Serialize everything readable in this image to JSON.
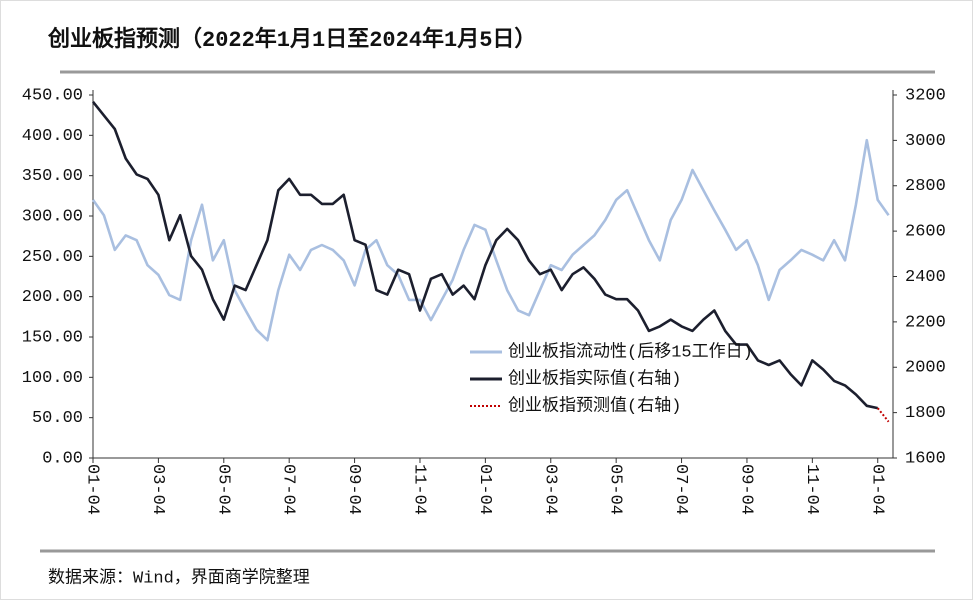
{
  "chart_data": {
    "type": "line",
    "title": "创业板指预测（2022年1月1日至2024年1月5日）",
    "source": "数据来源：Wind，界面商学院整理",
    "categories": [
      "01-04",
      null,
      null,
      null,
      null,
      null,
      "03-04",
      null,
      null,
      null,
      null,
      null,
      "05-04",
      null,
      null,
      null,
      null,
      null,
      "07-04",
      null,
      null,
      null,
      null,
      null,
      "09-04",
      null,
      null,
      null,
      null,
      null,
      "11-04",
      null,
      null,
      null,
      null,
      null,
      "01-04",
      null,
      null,
      null,
      null,
      null,
      "03-04",
      null,
      null,
      null,
      null,
      null,
      "05-04",
      null,
      null,
      null,
      null,
      null,
      "07-04",
      null,
      null,
      null,
      null,
      null,
      "09-04",
      null,
      null,
      null,
      null,
      null,
      "11-04",
      null,
      null,
      null,
      null,
      null,
      "01-04",
      null
    ],
    "series": [
      {
        "name": "创业板指流动性(后移15工作日)",
        "color": "#a9bfe0",
        "axis": "y",
        "style": "solid",
        "values": [
          320,
          301,
          258,
          276,
          270,
          239,
          227,
          202,
          196,
          270,
          314,
          245,
          270,
          208,
          183,
          159,
          146,
          208,
          252,
          233,
          258,
          264,
          258,
          245,
          214,
          258,
          270,
          239,
          227,
          196,
          196,
          171,
          196,
          221,
          258,
          289,
          283,
          245,
          208,
          183,
          177,
          208,
          239,
          233,
          252,
          264,
          276,
          295,
          320,
          332,
          301,
          270,
          245,
          295,
          320,
          357,
          332,
          307,
          283,
          258,
          270,
          239,
          196,
          233,
          245,
          258,
          252,
          245,
          270,
          245,
          314,
          394,
          320,
          301
        ]
      },
      {
        "name": "创业板指实际值(右轴)",
        "color": "#1c1f2e",
        "axis": "y2",
        "style": "solid",
        "values": [
          3170,
          3110,
          3050,
          2920,
          2850,
          2830,
          2760,
          2560,
          2670,
          2490,
          2430,
          2300,
          2210,
          2360,
          2340,
          2450,
          2560,
          2780,
          2830,
          2760,
          2760,
          2720,
          2720,
          2760,
          2560,
          2540,
          2340,
          2320,
          2430,
          2410,
          2250,
          2390,
          2410,
          2320,
          2360,
          2300,
          2450,
          2560,
          2610,
          2560,
          2470,
          2410,
          2430,
          2340,
          2410,
          2440,
          2390,
          2320,
          2300,
          2300,
          2250,
          2160,
          2180,
          2210,
          2180,
          2160,
          2210,
          2250,
          2160,
          2100,
          2100,
          2030,
          2010,
          2030,
          1970,
          1920,
          2030,
          1990,
          1940,
          1920,
          1880,
          1830,
          1820,
          null
        ]
      },
      {
        "name": "创业板指预测值(右轴)",
        "color": "#c00000",
        "axis": "y2",
        "style": "dotted",
        "values": [
          null,
          null,
          null,
          null,
          null,
          null,
          null,
          null,
          null,
          null,
          null,
          null,
          null,
          null,
          null,
          null,
          null,
          null,
          null,
          null,
          null,
          null,
          null,
          null,
          null,
          null,
          null,
          null,
          null,
          null,
          null,
          null,
          null,
          null,
          null,
          null,
          null,
          null,
          null,
          null,
          null,
          null,
          null,
          null,
          null,
          null,
          null,
          null,
          null,
          null,
          null,
          null,
          null,
          null,
          null,
          null,
          null,
          null,
          null,
          null,
          null,
          null,
          null,
          null,
          null,
          null,
          null,
          null,
          null,
          null,
          null,
          null,
          1820,
          1760
        ]
      }
    ],
    "ylim": [
      0,
      450
    ],
    "yticks": [
      {
        "value": 0,
        "label": "0.00"
      },
      {
        "value": 50,
        "label": "50.00"
      },
      {
        "value": 100,
        "label": "100.00"
      },
      {
        "value": 150,
        "label": "150.00"
      },
      {
        "value": 200,
        "label": "200.00"
      },
      {
        "value": 250,
        "label": "250.00"
      },
      {
        "value": 300,
        "label": "300.00"
      },
      {
        "value": 350,
        "label": "350.00"
      },
      {
        "value": 400,
        "label": "400.00"
      },
      {
        "value": 450,
        "label": "450.00"
      }
    ],
    "y2lim": [
      1600,
      3200
    ],
    "y2ticks": [
      1600,
      1800,
      2000,
      2200,
      2400,
      2600,
      2800,
      3000,
      3200
    ],
    "legend": "right",
    "grid": false
  }
}
